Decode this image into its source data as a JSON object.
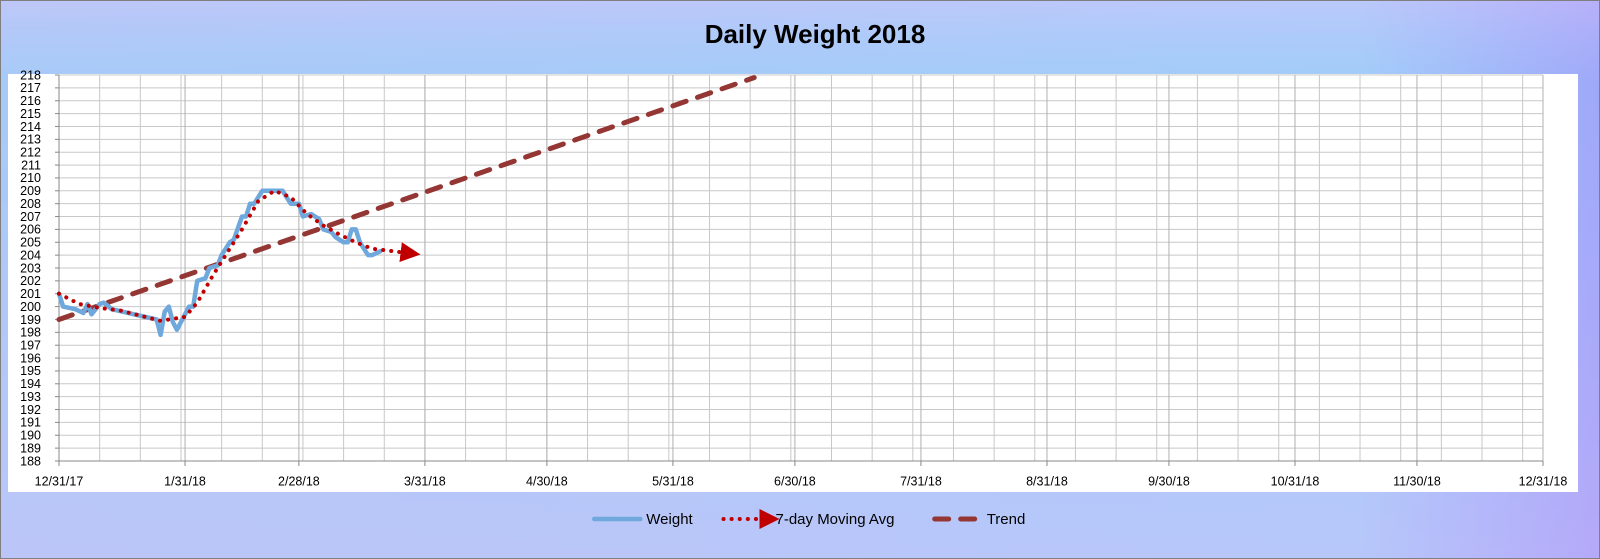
{
  "chart_data": {
    "type": "line",
    "title": "Daily Weight 2018",
    "xlim": [
      "2017-12-31",
      "2018-12-31"
    ],
    "xticks": [
      {
        "value": "2017-12-31",
        "label": "12/31/17"
      },
      {
        "value": "2018-01-31",
        "label": "1/31/18"
      },
      {
        "value": "2018-02-28",
        "label": "2/28/18"
      },
      {
        "value": "2018-03-31",
        "label": "3/31/18"
      },
      {
        "value": "2018-04-30",
        "label": "4/30/18"
      },
      {
        "value": "2018-05-31",
        "label": "5/31/18"
      },
      {
        "value": "2018-06-30",
        "label": "6/30/18"
      },
      {
        "value": "2018-07-31",
        "label": "7/31/18"
      },
      {
        "value": "2018-08-31",
        "label": "8/31/18"
      },
      {
        "value": "2018-09-30",
        "label": "9/30/18"
      },
      {
        "value": "2018-10-31",
        "label": "10/31/18"
      },
      {
        "value": "2018-11-30",
        "label": "11/30/18"
      },
      {
        "value": "2018-12-31",
        "label": "12/31/18"
      }
    ],
    "minor_grid_days": 10,
    "ylim": [
      188,
      218
    ],
    "yticks": [
      188,
      189,
      190,
      191,
      192,
      193,
      194,
      195,
      196,
      197,
      198,
      199,
      200,
      201,
      202,
      203,
      204,
      205,
      206,
      207,
      208,
      209,
      210,
      211,
      212,
      213,
      214,
      215,
      216,
      217,
      218
    ],
    "grid": true,
    "legend": "bottom",
    "series": [
      {
        "name": "Weight",
        "color": "#6fa8dc",
        "line_style": "solid",
        "end_arrow": false,
        "x": [
          "2017-12-31",
          "2018-01-01",
          "2018-01-04",
          "2018-01-06",
          "2018-01-07",
          "2018-01-08",
          "2018-01-10",
          "2018-01-11",
          "2018-01-13",
          "2018-01-24",
          "2018-01-25",
          "2018-01-26",
          "2018-01-27",
          "2018-01-28",
          "2018-01-29",
          "2018-01-31",
          "2018-02-01",
          "2018-02-02",
          "2018-02-03",
          "2018-02-05",
          "2018-02-06",
          "2018-02-08",
          "2018-02-09",
          "2018-02-11",
          "2018-02-12",
          "2018-02-14",
          "2018-02-15",
          "2018-02-16",
          "2018-02-17",
          "2018-02-19",
          "2018-02-24",
          "2018-02-26",
          "2018-02-28",
          "2018-03-01",
          "2018-03-03",
          "2018-03-05",
          "2018-03-06",
          "2018-03-08",
          "2018-03-09",
          "2018-03-11",
          "2018-03-12",
          "2018-03-13",
          "2018-03-14",
          "2018-03-15",
          "2018-03-17",
          "2018-03-18",
          "2018-03-20"
        ],
        "values": [
          201,
          200,
          199.8,
          199.5,
          200.2,
          199.4,
          200.2,
          200.3,
          199.8,
          199,
          197.8,
          199.6,
          200,
          198.8,
          198.2,
          199.4,
          200,
          200,
          202,
          202.2,
          203,
          203.2,
          204,
          205,
          205.2,
          207,
          207,
          208,
          208,
          209,
          209,
          208,
          208,
          207,
          207.2,
          206.8,
          206,
          205.8,
          205.4,
          205,
          205,
          206,
          206,
          205,
          204,
          204,
          204.3
        ]
      },
      {
        "name": "7-day Moving Avg",
        "color": "#c00000",
        "line_style": "dotted",
        "end_arrow": true,
        "x": [
          "2017-12-31",
          "2018-01-05",
          "2018-01-10",
          "2018-01-15",
          "2018-01-20",
          "2018-01-25",
          "2018-01-31",
          "2018-02-03",
          "2018-02-07",
          "2018-02-10",
          "2018-02-14",
          "2018-02-18",
          "2018-02-22",
          "2018-02-26",
          "2018-03-02",
          "2018-03-06",
          "2018-03-10",
          "2018-03-14",
          "2018-03-18",
          "2018-03-26"
        ],
        "values": [
          201,
          200.2,
          199.9,
          199.7,
          199.3,
          198.9,
          199.2,
          200.3,
          202.5,
          204,
          206,
          208.2,
          209,
          208.5,
          207.2,
          206.3,
          205.6,
          205,
          204.5,
          204.2
        ]
      },
      {
        "name": "Trend",
        "color": "#943634",
        "line_style": "dashed",
        "end_arrow": false,
        "x": [
          "2017-12-31",
          "2018-06-20"
        ],
        "values": [
          199,
          217.8
        ]
      }
    ]
  }
}
